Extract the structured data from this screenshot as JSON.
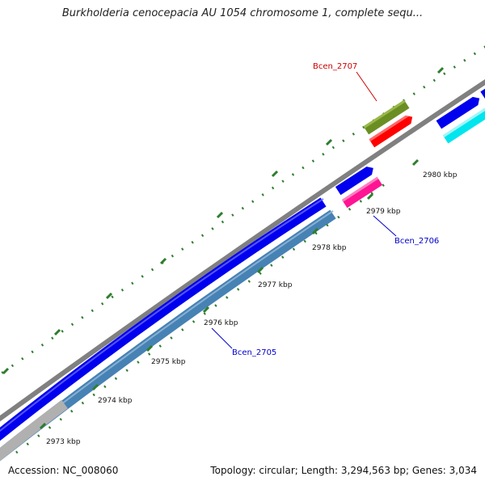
{
  "header": {
    "title": "Burkholderia cenocepacia AU 1054 chromosome 1, complete sequ..."
  },
  "footer": {
    "accession": "Accession: NC_008060",
    "summary": "Topology: circular; Length: 3,294,563 bp; Genes: 3,034"
  },
  "ticks": [
    {
      "label": "2973 kbp"
    },
    {
      "label": "2974 kbp"
    },
    {
      "label": "2975 kbp"
    },
    {
      "label": "2976 kbp"
    },
    {
      "label": "2977 kbp"
    },
    {
      "label": "2978 kbp"
    },
    {
      "label": "2979 kbp"
    },
    {
      "label": "2980 kbp"
    }
  ],
  "genes": [
    {
      "label": "Bcen_2707",
      "color": "#cc0000"
    },
    {
      "label": "Bcen_2706",
      "color": "#0000cc"
    },
    {
      "label": "Bcen_2705",
      "color": "#0000cc"
    }
  ],
  "colors": {
    "backbone": "#808080",
    "forward_cds": "#0000ee",
    "reverse_cds": "#4682b4",
    "tick": "#2e7d2e",
    "olive_feature": "#6b8e23",
    "red_feature": "#ff0000",
    "magenta_feature": "#ff1493",
    "cyan_feature": "#00ffff"
  }
}
